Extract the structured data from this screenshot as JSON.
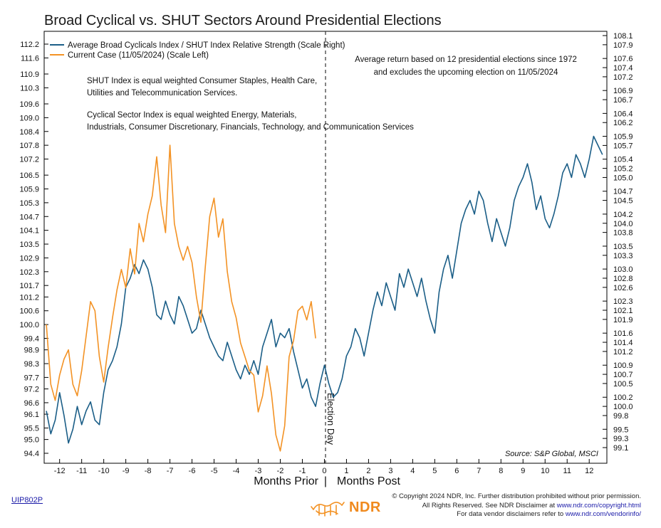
{
  "title": "Broad Cyclical vs. SHUT Sectors Around Presidential Elections",
  "legend": {
    "series1": "Average Broad Cyclicals Index / SHUT Index Relative Strength (Scale Right)",
    "series2": "Current Case (11/05/2024) (Scale Left)"
  },
  "notes": {
    "shut_line1": "SHUT Index is equal weighted Consumer Staples, Health Care,",
    "shut_line2": "Utilities and Telecommunication Services.",
    "cyc_line1": "Cyclical Sector Index is equal weighted Energy, Materials,",
    "cyc_line2": "Industrials, Consumer Discretionary, Financials, Technology, and Communication Services",
    "avg_line1": "Average return based on 12 presidential elections since 1972",
    "avg_line2": "and excludes the upcoming election on 11/05/2024"
  },
  "election_label": "Election Day",
  "source": "Source: S&P Global, MSCI",
  "xlabel_left": "Months Prior",
  "xlabel_sep": "|",
  "xlabel_right": "Months Post",
  "footer": {
    "code": "UIP802P",
    "line1": "© Copyright 2024 NDR, Inc. Further distribution prohibited without prior permission.",
    "line2_text": "All Rights Reserved. See NDR Disclaimer at ",
    "line2_link": "www.ndr.com/copyright.html",
    "line3_text": "For data vendor disclaimers refer to ",
    "line3_link": "www.ndr.com/vendorinfo/",
    "logo_text": "NDR"
  },
  "colors": {
    "series1": "#1b5e87",
    "series2": "#f39224"
  },
  "chart_data": {
    "type": "line",
    "title": "Broad Cyclical vs. SHUT Sectors Around Presidential Elections",
    "xlabel": "Months Prior | Months Post",
    "x_ticks": [
      -12,
      -11,
      -10,
      -9,
      -8,
      -7,
      -6,
      -5,
      -4,
      -3,
      -2,
      -1,
      0,
      1,
      2,
      3,
      4,
      5,
      6,
      7,
      8,
      9,
      10,
      11,
      12
    ],
    "x_range": [
      -12.7,
      12.8
    ],
    "y_left": {
      "ticks": [
        94.4,
        95.0,
        95.5,
        96.1,
        96.6,
        97.2,
        97.7,
        98.3,
        98.9,
        99.4,
        100.0,
        100.6,
        101.2,
        101.7,
        102.3,
        102.9,
        103.5,
        104.1,
        104.7,
        105.3,
        105.9,
        106.5,
        107.2,
        107.8,
        108.4,
        109.0,
        109.6,
        110.3,
        110.9,
        111.6,
        112.2
      ],
      "range": [
        94.4,
        112.2
      ]
    },
    "y_right": {
      "ticks": [
        99.1,
        99.3,
        99.5,
        99.8,
        100.0,
        100.2,
        100.5,
        100.7,
        100.9,
        101.2,
        101.4,
        101.6,
        101.9,
        102.1,
        102.3,
        102.6,
        102.8,
        103.0,
        103.3,
        103.5,
        103.8,
        104.0,
        104.2,
        104.5,
        104.7,
        105.0,
        105.2,
        105.4,
        105.7,
        105.9,
        106.2,
        106.4,
        106.7,
        106.9,
        107.2,
        107.4,
        107.6,
        107.9,
        108.1
      ],
      "range": [
        99.1,
        108.1
      ]
    },
    "series": [
      {
        "name": "Average Broad Cyclicals Index / SHUT Index Relative Strength (Scale Right)",
        "axis": "right",
        "x": [
          -12.6,
          -12.4,
          -12.2,
          -12.0,
          -11.8,
          -11.6,
          -11.4,
          -11.2,
          -11.0,
          -10.8,
          -10.6,
          -10.4,
          -10.2,
          -10.0,
          -9.8,
          -9.6,
          -9.4,
          -9.2,
          -9.0,
          -8.8,
          -8.6,
          -8.4,
          -8.2,
          -8.0,
          -7.8,
          -7.6,
          -7.4,
          -7.2,
          -7.0,
          -6.8,
          -6.6,
          -6.4,
          -6.2,
          -6.0,
          -5.8,
          -5.6,
          -5.4,
          -5.2,
          -5.0,
          -4.8,
          -4.6,
          -4.4,
          -4.2,
          -4.0,
          -3.8,
          -3.6,
          -3.4,
          -3.2,
          -3.0,
          -2.8,
          -2.6,
          -2.4,
          -2.2,
          -2.0,
          -1.8,
          -1.6,
          -1.4,
          -1.2,
          -1.0,
          -0.8,
          -0.6,
          -0.4,
          -0.2,
          0.0,
          0.2,
          0.4,
          0.6,
          0.8,
          1.0,
          1.2,
          1.4,
          1.6,
          1.8,
          2.0,
          2.2,
          2.4,
          2.6,
          2.8,
          3.0,
          3.2,
          3.4,
          3.6,
          3.8,
          4.0,
          4.2,
          4.4,
          4.6,
          4.8,
          5.0,
          5.2,
          5.4,
          5.6,
          5.8,
          6.0,
          6.2,
          6.4,
          6.6,
          6.8,
          7.0,
          7.2,
          7.4,
          7.6,
          7.8,
          8.0,
          8.2,
          8.4,
          8.6,
          8.8,
          9.0,
          9.2,
          9.4,
          9.6,
          9.8,
          10.0,
          10.2,
          10.4,
          10.6,
          10.8,
          11.0,
          11.2,
          11.4,
          11.6,
          11.8,
          12.0,
          12.2,
          12.4,
          12.6
        ],
        "values": [
          99.9,
          99.4,
          99.7,
          100.3,
          99.8,
          99.2,
          99.5,
          100.0,
          99.6,
          99.9,
          100.1,
          99.7,
          99.6,
          100.3,
          100.8,
          101.0,
          101.3,
          101.8,
          102.6,
          102.8,
          103.1,
          102.9,
          103.2,
          103.0,
          102.6,
          102.0,
          101.9,
          102.3,
          102.0,
          101.8,
          102.4,
          102.2,
          101.9,
          101.6,
          101.7,
          102.1,
          101.8,
          101.5,
          101.3,
          101.1,
          101.0,
          101.4,
          101.1,
          100.8,
          100.6,
          100.9,
          100.7,
          101.0,
          100.7,
          101.3,
          101.6,
          101.9,
          101.3,
          101.6,
          101.5,
          101.7,
          101.2,
          100.8,
          100.4,
          100.6,
          100.2,
          100.0,
          100.5,
          100.9,
          100.5,
          100.2,
          100.3,
          100.6,
          101.1,
          101.3,
          101.7,
          101.5,
          101.1,
          101.6,
          102.1,
          102.5,
          102.2,
          102.7,
          102.4,
          102.1,
          102.9,
          102.6,
          103.0,
          102.7,
          102.4,
          102.8,
          102.3,
          101.9,
          101.6,
          102.5,
          103.0,
          103.3,
          102.8,
          103.4,
          104.0,
          104.3,
          104.5,
          104.2,
          104.7,
          104.5,
          104.0,
          103.6,
          104.1,
          103.8,
          103.5,
          103.9,
          104.5,
          104.8,
          105.0,
          105.3,
          104.9,
          104.3,
          104.6,
          104.1,
          103.9,
          104.2,
          104.6,
          105.1,
          105.3,
          105.0,
          105.5,
          105.3,
          105.0,
          105.4,
          105.9,
          105.7,
          105.5
        ]
      },
      {
        "name": "Current Case (11/05/2024) (Scale Left)",
        "axis": "left",
        "x": [
          -12.6,
          -12.4,
          -12.2,
          -12.0,
          -11.8,
          -11.6,
          -11.4,
          -11.2,
          -11.0,
          -10.8,
          -10.6,
          -10.4,
          -10.2,
          -10.0,
          -9.8,
          -9.6,
          -9.4,
          -9.2,
          -9.0,
          -8.8,
          -8.6,
          -8.4,
          -8.2,
          -8.0,
          -7.8,
          -7.6,
          -7.4,
          -7.2,
          -7.0,
          -6.8,
          -6.6,
          -6.4,
          -6.2,
          -6.0,
          -5.8,
          -5.6,
          -5.4,
          -5.2,
          -5.0,
          -4.8,
          -4.6,
          -4.4,
          -4.2,
          -4.0,
          -3.8,
          -3.6,
          -3.4,
          -3.2,
          -3.0,
          -2.8,
          -2.6,
          -2.4,
          -2.2,
          -2.0,
          -1.8,
          -1.6,
          -1.4,
          -1.2,
          -1.0,
          -0.8,
          -0.6,
          -0.4
        ],
        "values": [
          100.0,
          97.4,
          96.7,
          97.8,
          98.5,
          98.9,
          97.4,
          96.9,
          98.0,
          99.5,
          101.0,
          100.6,
          98.6,
          97.5,
          99.0,
          100.3,
          101.5,
          102.4,
          101.6,
          103.3,
          102.2,
          104.4,
          103.6,
          104.8,
          105.6,
          107.3,
          105.2,
          104.0,
          107.8,
          104.4,
          103.4,
          102.8,
          103.4,
          102.7,
          101.2,
          100.1,
          102.5,
          104.7,
          105.5,
          103.8,
          104.6,
          102.3,
          101.0,
          100.3,
          99.2,
          98.6,
          98.0,
          97.8,
          96.2,
          96.9,
          98.2,
          97.0,
          95.2,
          94.5,
          95.6,
          98.6,
          99.3,
          100.6,
          100.8,
          100.2,
          101.0,
          99.4
        ]
      }
    ],
    "annotations": [
      "Election Day",
      "Source: S&P Global, MSCI"
    ]
  }
}
